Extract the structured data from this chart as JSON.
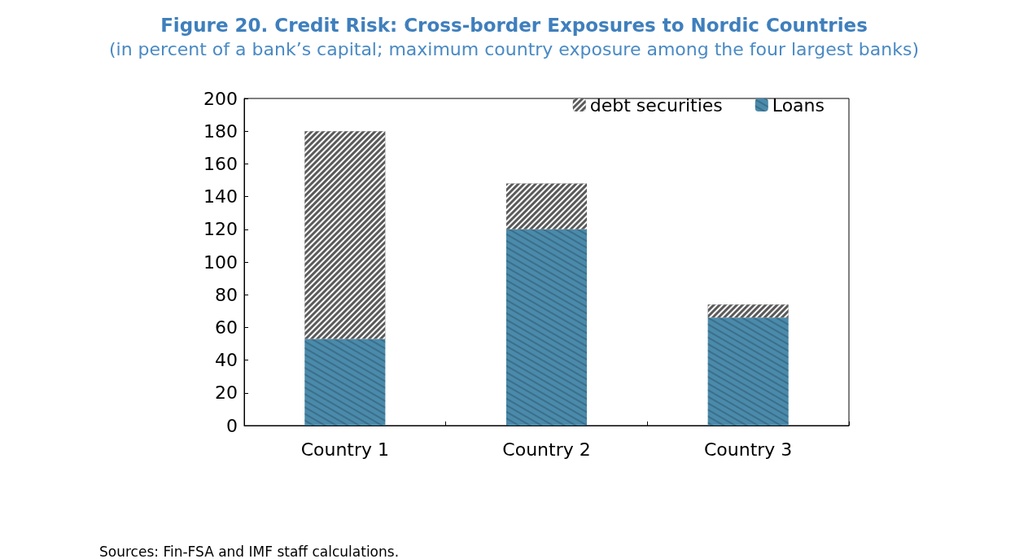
{
  "chart_data": {
    "type": "bar",
    "title": "Figure 20. Credit Risk: Cross-border Exposures to Nordic Countries",
    "subtitle": "(in percent of a bank’s capital; maximum country exposure among the four largest banks)",
    "categories": [
      "Country 1",
      "Country 2",
      "Country 3"
    ],
    "stacked": true,
    "series": [
      {
        "name": "Loans",
        "color": "#4a8aab",
        "values": [
          53,
          120,
          66
        ]
      },
      {
        "name": "debt securities",
        "color": "#5a5a5a",
        "values": [
          127,
          28,
          8
        ]
      }
    ],
    "ylim": [
      0,
      200
    ],
    "yticks": [
      0,
      20,
      40,
      60,
      80,
      100,
      120,
      140,
      160,
      180,
      200
    ],
    "grid": false,
    "legend": "top right",
    "annotations": [
      "Sources: Fin-FSA and IMF staff calculations."
    ]
  }
}
